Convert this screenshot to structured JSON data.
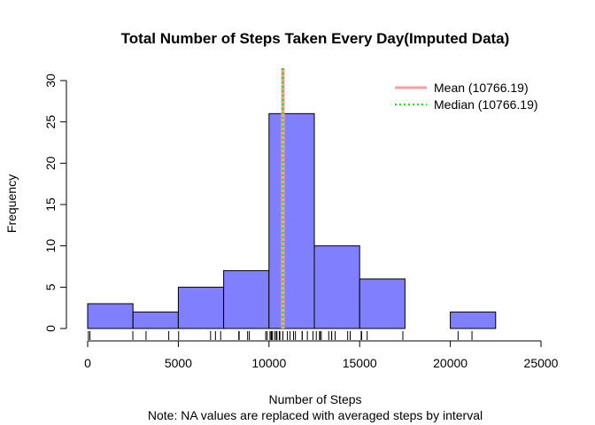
{
  "chart_data": {
    "type": "histogram",
    "title": "Total Number of Steps Taken Every Day(Imputed Data)",
    "xlabel": "Number of Steps",
    "ylabel": "Frequency",
    "subtitle": "Note: NA values are replaced with averaged steps by interval",
    "bin_edges": [
      0,
      2500,
      5000,
      7500,
      10000,
      12500,
      15000,
      17500,
      20000,
      22500
    ],
    "counts": [
      3,
      2,
      5,
      7,
      26,
      10,
      6,
      0,
      2
    ],
    "xlim": [
      0,
      25000
    ],
    "ylim": [
      0,
      30
    ],
    "xticks": [
      0,
      5000,
      10000,
      15000,
      20000,
      25000
    ],
    "xtick_labels": [
      "0",
      "5000",
      "10000",
      "15000",
      "20000",
      "25000"
    ],
    "yticks": [
      0,
      5,
      10,
      15,
      20,
      25,
      30
    ],
    "ytick_labels": [
      "0",
      "5",
      "10",
      "15",
      "20",
      "25",
      "30"
    ],
    "bar_color": "#8080ff",
    "mean": 10766.19,
    "median": 10766.19,
    "mean_color": "#f4a3a3",
    "median_color": "#00e000",
    "legend": {
      "position": "top-right",
      "entries": [
        {
          "label": "Mean (10766.19)",
          "color": "#f4a3a3",
          "style": "solid"
        },
        {
          "label": "Median (10766.19)",
          "color": "#00e000",
          "style": "dotted"
        }
      ]
    },
    "rug": [
      41,
      126,
      2492,
      3219,
      4472,
      5018,
      6778,
      7047,
      7336,
      8334,
      8355,
      8821,
      8918,
      9819,
      9900,
      10056,
      10119,
      10139,
      10183,
      10304,
      10395,
      10439,
      10571,
      10600,
      10765,
      10766.19,
      11015,
      11162,
      11352,
      11458,
      11829,
      11834,
      12116,
      12426,
      12608,
      12787,
      12811,
      12883,
      13294,
      13452,
      13460,
      13646,
      14339,
      14478,
      15084,
      15098,
      15110,
      15414,
      17382,
      20427,
      21194
    ]
  }
}
